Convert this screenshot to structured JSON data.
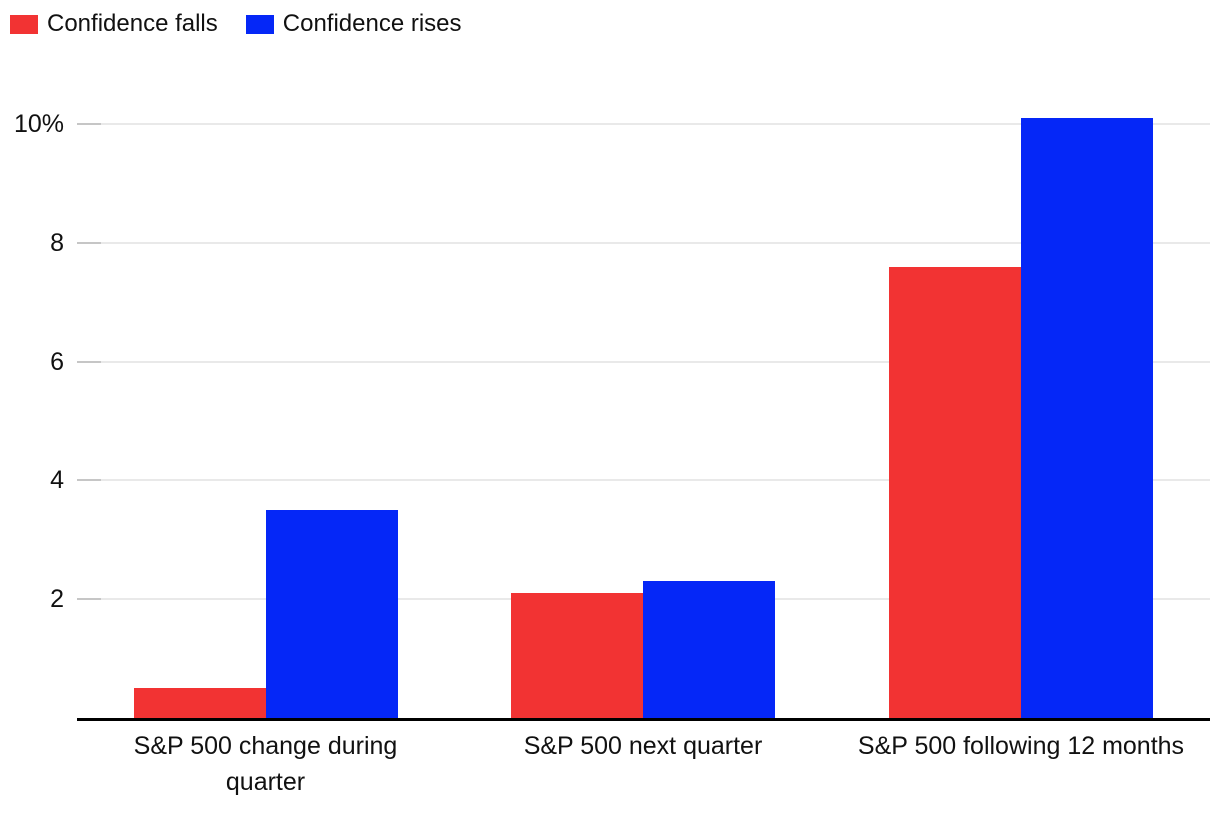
{
  "chart_data": {
    "type": "bar",
    "title": "",
    "categories": [
      "S&P 500 change during quarter",
      "S&P 500 next quarter",
      "S&P 500 following 12 months"
    ],
    "series": [
      {
        "name": "Confidence falls",
        "color": "#f23333",
        "values": [
          0.5,
          2.1,
          7.6
        ]
      },
      {
        "name": "Confidence rises",
        "color": "#0527f7",
        "values": [
          3.5,
          2.3,
          10.1
        ]
      }
    ],
    "unit": "%",
    "yticks": [
      {
        "value": 2,
        "label": "2"
      },
      {
        "value": 4,
        "label": "4"
      },
      {
        "value": 6,
        "label": "6"
      },
      {
        "value": 8,
        "label": "8"
      },
      {
        "value": 10,
        "label": "10%"
      }
    ],
    "ylim": [
      0,
      10.4
    ],
    "xlabel": "",
    "ylabel": "",
    "grid": "horizontal",
    "legend_position": "top-left",
    "colors": {
      "background": "#ffffff",
      "gridline": "#e9e9e9",
      "tick": "#c6c6c6",
      "axis_line": "#000000",
      "text": "#111111"
    }
  }
}
